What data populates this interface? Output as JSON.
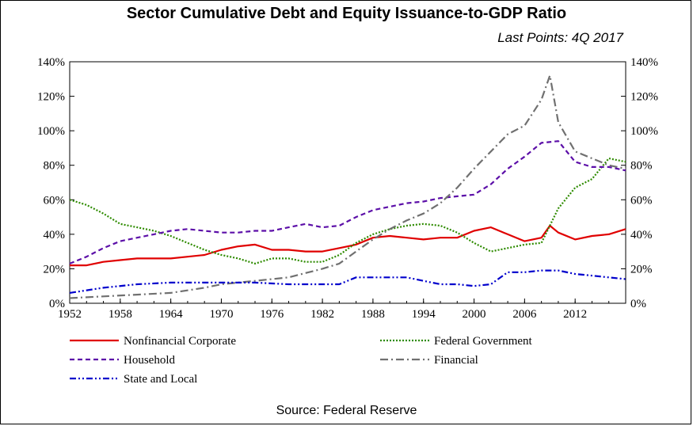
{
  "chart_data": {
    "type": "line",
    "title": "Sector Cumulative Debt and Equity Issuance-to-GDP Ratio",
    "subtitle": "Last  Points:  4Q  2017",
    "source": "Source: Federal Reserve",
    "x_ticks": [
      "1952",
      "1958",
      "1964",
      "1970",
      "1976",
      "1982",
      "1988",
      "1994",
      "2000",
      "2006",
      "2012"
    ],
    "y_ticks": [
      "0%",
      "20%",
      "40%",
      "60%",
      "80%",
      "100%",
      "120%",
      "140%"
    ],
    "xlim": [
      1952,
      2018
    ],
    "ylim": [
      0,
      140
    ],
    "grid": false,
    "legend_position": "bottom",
    "series": [
      {
        "name": "Nonfinancial Corporate",
        "color": "#e00000",
        "dash": "solid",
        "points": [
          [
            1952,
            22
          ],
          [
            1954,
            22
          ],
          [
            1956,
            24
          ],
          [
            1958,
            25
          ],
          [
            1960,
            26
          ],
          [
            1962,
            26
          ],
          [
            1964,
            26
          ],
          [
            1966,
            27
          ],
          [
            1968,
            28
          ],
          [
            1970,
            31
          ],
          [
            1972,
            33
          ],
          [
            1974,
            34
          ],
          [
            1976,
            31
          ],
          [
            1978,
            31
          ],
          [
            1980,
            30
          ],
          [
            1982,
            30
          ],
          [
            1984,
            32
          ],
          [
            1986,
            34
          ],
          [
            1988,
            38
          ],
          [
            1990,
            39
          ],
          [
            1992,
            38
          ],
          [
            1994,
            37
          ],
          [
            1996,
            38
          ],
          [
            1998,
            38
          ],
          [
            2000,
            42
          ],
          [
            2002,
            44
          ],
          [
            2004,
            40
          ],
          [
            2006,
            36
          ],
          [
            2008,
            38
          ],
          [
            2009,
            45
          ],
          [
            2010,
            41
          ],
          [
            2012,
            37
          ],
          [
            2014,
            39
          ],
          [
            2016,
            40
          ],
          [
            2018,
            43
          ]
        ]
      },
      {
        "name": "Federal Government",
        "color": "#2e8b00",
        "dash": "dotted",
        "points": [
          [
            1952,
            60
          ],
          [
            1954,
            57
          ],
          [
            1956,
            52
          ],
          [
            1958,
            46
          ],
          [
            1960,
            44
          ],
          [
            1962,
            42
          ],
          [
            1964,
            39
          ],
          [
            1966,
            35
          ],
          [
            1968,
            31
          ],
          [
            1970,
            28
          ],
          [
            1972,
            26
          ],
          [
            1974,
            23
          ],
          [
            1976,
            26
          ],
          [
            1978,
            26
          ],
          [
            1980,
            24
          ],
          [
            1982,
            24
          ],
          [
            1984,
            28
          ],
          [
            1986,
            35
          ],
          [
            1988,
            40
          ],
          [
            1990,
            43
          ],
          [
            1992,
            45
          ],
          [
            1994,
            46
          ],
          [
            1996,
            45
          ],
          [
            1998,
            41
          ],
          [
            2000,
            35
          ],
          [
            2002,
            30
          ],
          [
            2004,
            32
          ],
          [
            2006,
            34
          ],
          [
            2008,
            35
          ],
          [
            2010,
            55
          ],
          [
            2012,
            67
          ],
          [
            2014,
            72
          ],
          [
            2016,
            84
          ],
          [
            2018,
            82
          ]
        ]
      },
      {
        "name": "Household",
        "color": "#5c0fa8",
        "dash": "dashed",
        "points": [
          [
            1952,
            23
          ],
          [
            1954,
            27
          ],
          [
            1956,
            32
          ],
          [
            1958,
            36
          ],
          [
            1960,
            38
          ],
          [
            1962,
            40
          ],
          [
            1964,
            42
          ],
          [
            1966,
            43
          ],
          [
            1968,
            42
          ],
          [
            1970,
            41
          ],
          [
            1972,
            41
          ],
          [
            1974,
            42
          ],
          [
            1976,
            42
          ],
          [
            1978,
            44
          ],
          [
            1980,
            46
          ],
          [
            1982,
            44
          ],
          [
            1984,
            45
          ],
          [
            1986,
            50
          ],
          [
            1988,
            54
          ],
          [
            1990,
            56
          ],
          [
            1992,
            58
          ],
          [
            1994,
            59
          ],
          [
            1996,
            61
          ],
          [
            1998,
            62
          ],
          [
            2000,
            63
          ],
          [
            2002,
            69
          ],
          [
            2004,
            78
          ],
          [
            2006,
            85
          ],
          [
            2008,
            93
          ],
          [
            2010,
            94
          ],
          [
            2012,
            82
          ],
          [
            2014,
            79
          ],
          [
            2016,
            79
          ],
          [
            2018,
            77
          ]
        ]
      },
      {
        "name": "Financial",
        "color": "#707070",
        "dash": "dashdot",
        "points": [
          [
            1952,
            3
          ],
          [
            1956,
            4
          ],
          [
            1960,
            5
          ],
          [
            1964,
            6
          ],
          [
            1968,
            9
          ],
          [
            1970,
            11
          ],
          [
            1974,
            13
          ],
          [
            1978,
            15
          ],
          [
            1982,
            20
          ],
          [
            1984,
            23
          ],
          [
            1986,
            30
          ],
          [
            1988,
            37
          ],
          [
            1990,
            43
          ],
          [
            1992,
            48
          ],
          [
            1994,
            52
          ],
          [
            1996,
            58
          ],
          [
            1998,
            67
          ],
          [
            2000,
            78
          ],
          [
            2002,
            88
          ],
          [
            2004,
            98
          ],
          [
            2006,
            103
          ],
          [
            2008,
            118
          ],
          [
            2009,
            132
          ],
          [
            2010,
            105
          ],
          [
            2012,
            88
          ],
          [
            2014,
            84
          ],
          [
            2016,
            80
          ],
          [
            2018,
            78
          ]
        ]
      },
      {
        "name": "State and Local",
        "color": "#0000cc",
        "dash": "dashdotdot",
        "points": [
          [
            1952,
            6
          ],
          [
            1956,
            9
          ],
          [
            1960,
            11
          ],
          [
            1964,
            12
          ],
          [
            1968,
            12
          ],
          [
            1970,
            12
          ],
          [
            1974,
            12
          ],
          [
            1978,
            11
          ],
          [
            1982,
            11
          ],
          [
            1984,
            11
          ],
          [
            1986,
            15
          ],
          [
            1988,
            15
          ],
          [
            1990,
            15
          ],
          [
            1992,
            15
          ],
          [
            1994,
            13
          ],
          [
            1996,
            11
          ],
          [
            1998,
            11
          ],
          [
            2000,
            10
          ],
          [
            2002,
            11
          ],
          [
            2004,
            18
          ],
          [
            2006,
            18
          ],
          [
            2008,
            19
          ],
          [
            2010,
            19
          ],
          [
            2012,
            17
          ],
          [
            2014,
            16
          ],
          [
            2016,
            15
          ],
          [
            2018,
            14
          ]
        ]
      }
    ]
  }
}
